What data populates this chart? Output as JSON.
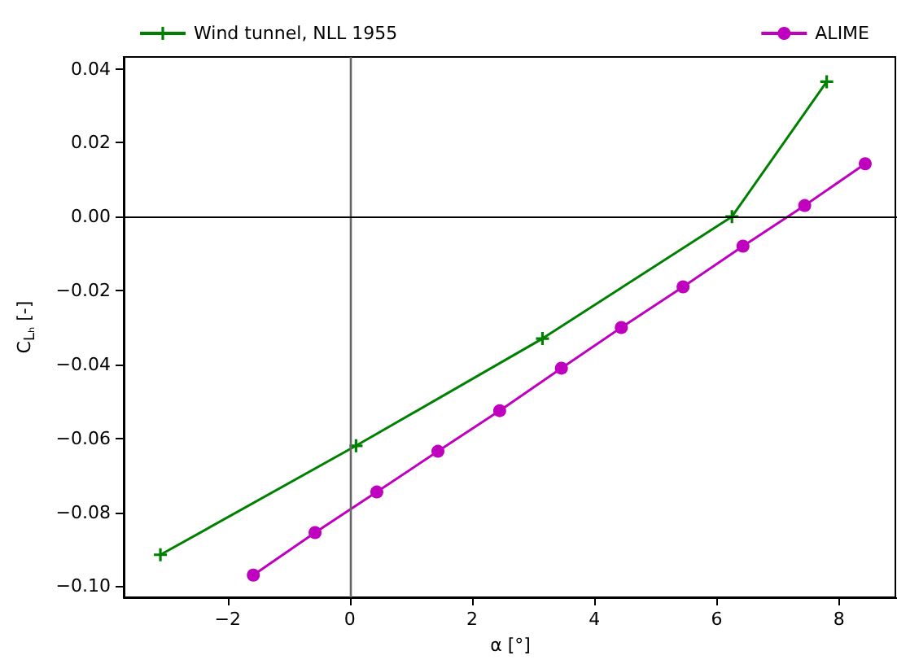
{
  "chart_data": {
    "type": "line",
    "xlabel": "α [°]",
    "ylabel": "C$_{Lₕ}$ [-]",
    "xlim": [
      -3.7,
      8.95
    ],
    "ylim": [
      -0.103,
      0.0432
    ],
    "xticks": [
      {
        "value": -2,
        "label": "−2"
      },
      0,
      2,
      4,
      6,
      8
    ],
    "yticks": [
      {
        "value": -0.1,
        "label": "−0.10"
      },
      {
        "value": -0.08,
        "label": "−0.08"
      },
      {
        "value": -0.06,
        "label": "−0.06"
      },
      {
        "value": -0.04,
        "label": "−0.04"
      },
      {
        "value": -0.02,
        "label": "−0.02"
      },
      {
        "value": 0,
        "label": "0.00"
      },
      0.02,
      0.04
    ],
    "grid": false,
    "legend": "top",
    "line_style": "solid",
    "ref_lines": [
      {
        "axis": "x",
        "value": 0,
        "color": "#666666"
      },
      {
        "axis": "y",
        "value": 0,
        "color": "#000000"
      }
    ],
    "series": [
      {
        "name": "Wind tunnel, NLL 1955",
        "color": "#008000",
        "marker": "cross",
        "x": [
          -3.1,
          0.1,
          3.15,
          6.25,
          7.8
        ],
        "values": [
          -0.0915,
          -0.062,
          -0.033,
          0.0,
          0.0365
        ]
      },
      {
        "name": "ALIME",
        "color": "#bf00bf",
        "marker": "circle",
        "x": [
          -1.58,
          -0.57,
          0.44,
          1.44,
          2.45,
          3.46,
          4.44,
          5.45,
          6.43,
          7.44,
          8.43
        ],
        "values": [
          -0.097,
          -0.0855,
          -0.0745,
          -0.0635,
          -0.0525,
          -0.041,
          -0.03,
          -0.019,
          -0.008,
          0.003,
          0.0143
        ]
      }
    ]
  }
}
